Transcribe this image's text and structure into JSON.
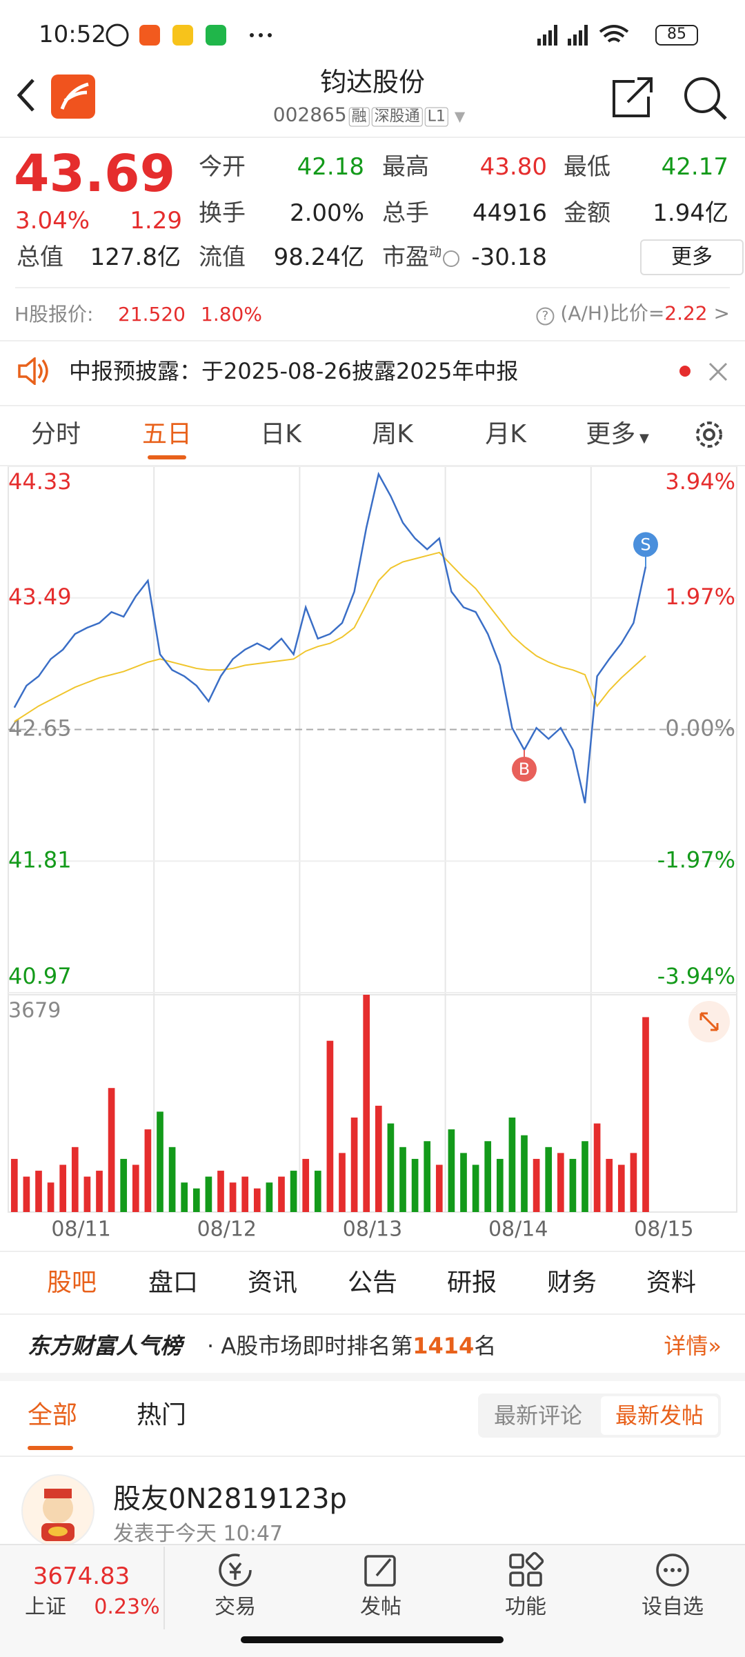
{
  "status": {
    "time": "10:52",
    "battery": "85"
  },
  "header": {
    "title": "钧达股份",
    "code": "002865",
    "tags": [
      "融",
      "深股通",
      "L1"
    ]
  },
  "quote": {
    "price": "43.69",
    "change_pct": "3.04%",
    "change": "1.29",
    "fields": [
      {
        "label": "今开",
        "value": "42.18"
      },
      {
        "label": "最高",
        "value": "43.80"
      },
      {
        "label": "最低",
        "value": "42.17"
      },
      {
        "label": "换手",
        "value": "2.00%"
      },
      {
        "label": "总手",
        "value": "44916"
      },
      {
        "label": "金额",
        "value": "1.94亿"
      },
      {
        "label": "总值",
        "value": "127.8亿"
      },
      {
        "label": "流值",
        "value": "98.24亿"
      },
      {
        "label": "市盈",
        "sup": "动",
        "value": "-30.18"
      }
    ],
    "more": "更多"
  },
  "hk": {
    "label": "H股报价:",
    "price": "21.520",
    "pct": "1.80%",
    "ratio_label": "(A/H)比价=",
    "ratio": "2.22"
  },
  "notice": "中报预披露：于2025-08-26披露2025年中报",
  "tabs": [
    "分时",
    "五日",
    "日K",
    "周K",
    "月K",
    "更多"
  ],
  "chart": {
    "type": "line",
    "ylim": [
      40.97,
      44.33
    ],
    "yticks": [
      40.97,
      41.81,
      42.65,
      43.49,
      44.33
    ],
    "y2lim": [
      -3.94,
      3.94
    ],
    "y2ticks": [
      {
        "value": -3.94,
        "label": "-3.94%"
      },
      {
        "value": -1.97,
        "label": "-1.97%"
      },
      {
        "value": 0,
        "label": "0.00%"
      },
      {
        "value": 1.97,
        "label": "1.97%"
      },
      {
        "value": 3.94,
        "label": "3.94%"
      }
    ],
    "days": [
      "08/11",
      "08/12",
      "08/13",
      "08/14",
      "08/15"
    ],
    "series": [
      {
        "color": "#3a6ec6",
        "values": [
          42.79,
          42.93,
          42.99,
          43.1,
          43.16,
          43.26,
          43.3,
          43.33,
          43.4,
          43.37,
          43.5,
          43.6,
          43.13,
          43.03,
          42.99,
          42.93,
          42.83,
          42.99,
          43.1,
          43.16,
          43.2,
          43.16,
          43.23,
          43.13,
          43.43,
          43.23,
          43.26,
          43.33,
          43.53,
          43.94,
          44.28,
          44.14,
          43.97,
          43.87,
          43.8,
          43.87,
          43.53,
          43.43,
          43.4,
          43.26,
          43.06,
          42.66,
          42.52,
          42.66,
          42.59,
          42.66,
          42.52,
          42.18,
          42.99,
          43.1,
          43.2,
          43.33,
          43.69
        ]
      },
      {
        "color": "#f0c52c",
        "values": [
          42.7,
          42.75,
          42.8,
          42.84,
          42.88,
          42.92,
          42.95,
          42.98,
          43.0,
          43.02,
          43.05,
          43.08,
          43.1,
          43.08,
          43.06,
          43.04,
          43.03,
          43.03,
          43.04,
          43.06,
          43.07,
          43.08,
          43.09,
          43.1,
          43.15,
          43.18,
          43.2,
          43.24,
          43.3,
          43.45,
          43.6,
          43.68,
          43.72,
          43.74,
          43.76,
          43.78,
          43.7,
          43.62,
          43.55,
          43.45,
          43.35,
          43.25,
          43.18,
          43.12,
          43.08,
          43.05,
          43.03,
          43.0,
          42.8,
          42.9,
          42.98,
          43.05,
          43.12
        ]
      }
    ],
    "markers": [
      "B",
      "S"
    ],
    "volume": {
      "ylim": [
        0,
        3679
      ],
      "yticks": [
        3679
      ],
      "values": [
        900,
        600,
        700,
        500,
        800,
        1100,
        600,
        700,
        2100,
        900,
        800,
        1400,
        1700,
        1100,
        500,
        400,
        600,
        700,
        500,
        600,
        400,
        500,
        600,
        700,
        900,
        700,
        2900,
        1000,
        1600,
        3679,
        1800,
        1500,
        1100,
        900,
        1200,
        800,
        1400,
        1000,
        800,
        1200,
        900,
        1600,
        1300,
        900,
        1100,
        1000,
        900,
        1200,
        1500,
        900,
        800,
        1000,
        3300
      ]
    }
  },
  "sections": [
    "股吧",
    "盘口",
    "资讯",
    "公告",
    "研报",
    "财务",
    "资料"
  ],
  "ranking": {
    "brand": "东方财富人气榜",
    "text": "· A股市场即时排名第",
    "rank": "1414",
    "unit": "名",
    "detail": "详情"
  },
  "filters": [
    "全部",
    "热门"
  ],
  "sort": [
    "最新评论",
    "最新发帖"
  ],
  "post": {
    "user": "股友0N2819123p",
    "time": "发表于今天 10:47"
  },
  "bottom": {
    "index_value": "3674.83",
    "index_name": "上证",
    "index_pct": "0.23%",
    "actions": [
      "交易",
      "发帖",
      "功能",
      "设自选"
    ]
  }
}
